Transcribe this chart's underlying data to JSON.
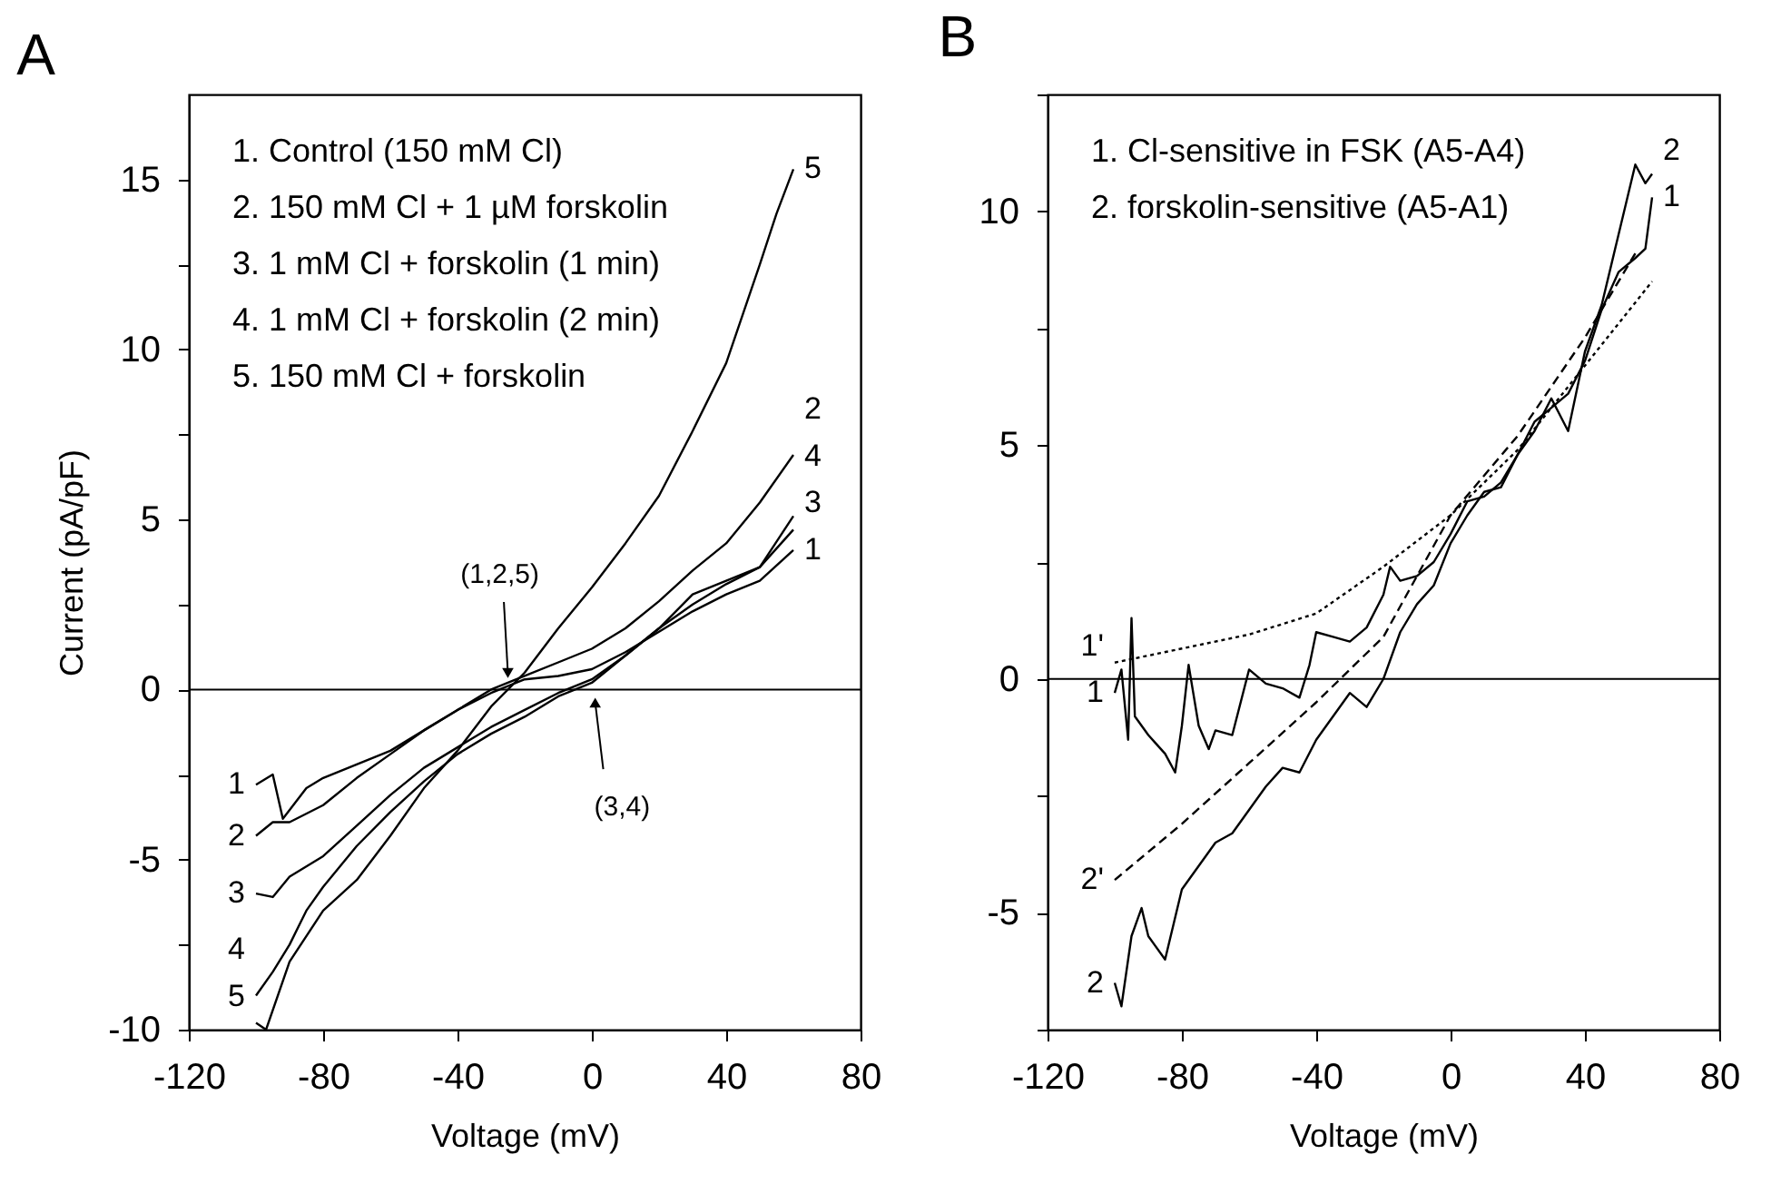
{
  "chart_data": [
    {
      "type": "line",
      "title": "A",
      "xlabel": "Voltage (mV)",
      "ylabel": "Current (pA/pF)",
      "xlim": [
        -120,
        80
      ],
      "xticks": [
        -120,
        -80,
        -40,
        0,
        40,
        80
      ],
      "ylim": [
        -10,
        17.5
      ],
      "yticks": [
        -10,
        {
          "value": -7.5,
          "label": null
        },
        -5,
        {
          "value": -2.5,
          "label": null
        },
        0,
        {
          "value": 2.5,
          "label": null
        },
        5,
        {
          "value": 7.5,
          "label": null
        },
        10,
        {
          "value": 12.5,
          "label": null
        },
        15
      ],
      "ref_lines": [
        {
          "axis": "y",
          "value": 0
        }
      ],
      "annotations": [
        "1. Control (150 mM Cl)",
        "2. 150 mM Cl + 1 µM forskolin",
        "3. 1 mM Cl + forskolin (1 min)",
        "4. 1 mM Cl + forskolin (2 min)",
        "5. 150 mM Cl + forskolin",
        {
          "text": "(1,2,5)",
          "x": -25,
          "y": 0.1
        },
        {
          "text": "(3,4)",
          "x": 1,
          "y": 0
        }
      ],
      "series": [
        {
          "name": "1",
          "color": "#000000",
          "line_style": "solid",
          "x": [
            -100,
            -95,
            -92,
            -85,
            -80,
            -70,
            -60,
            -50,
            -40,
            -30,
            -25,
            -20,
            -10,
            0,
            10,
            20,
            30,
            40,
            50,
            60
          ],
          "values": [
            -2.8,
            -2.5,
            -3.8,
            -2.9,
            -2.6,
            -2.2,
            -1.8,
            -1.2,
            -0.6,
            -0.1,
            0.1,
            0.3,
            0.4,
            0.6,
            1.1,
            1.7,
            2.3,
            2.8,
            3.2,
            4.1
          ]
        },
        {
          "name": "2",
          "color": "#000000",
          "line_style": "solid",
          "x": [
            -100,
            -95,
            -90,
            -80,
            -70,
            -60,
            -50,
            -40,
            -30,
            -20,
            -10,
            0,
            10,
            20,
            30,
            40,
            50,
            60
          ],
          "values": [
            -4.3,
            -3.9,
            -3.9,
            -3.4,
            -2.6,
            -1.9,
            -1.2,
            -0.6,
            0.0,
            0.4,
            0.8,
            1.2,
            1.8,
            2.6,
            3.5,
            4.3,
            5.5,
            6.9
          ]
        },
        {
          "name": "3",
          "color": "#000000",
          "line_style": "solid",
          "x": [
            -100,
            -95,
            -90,
            -80,
            -70,
            -60,
            -50,
            -40,
            -30,
            -20,
            -10,
            0,
            10,
            20,
            30,
            40,
            50,
            60
          ],
          "values": [
            -6.0,
            -6.1,
            -5.5,
            -4.9,
            -4.0,
            -3.1,
            -2.3,
            -1.7,
            -1.1,
            -0.6,
            -0.1,
            0.3,
            1.0,
            1.8,
            2.5,
            3.1,
            3.6,
            4.7
          ]
        },
        {
          "name": "4",
          "color": "#000000",
          "line_style": "solid",
          "x": [
            -100,
            -95,
            -90,
            -85,
            -80,
            -70,
            -60,
            -50,
            -40,
            -30,
            -20,
            -10,
            0,
            10,
            20,
            30,
            40,
            50,
            60
          ],
          "values": [
            -9.0,
            -8.3,
            -7.5,
            -6.5,
            -5.8,
            -4.6,
            -3.6,
            -2.7,
            -1.9,
            -1.3,
            -0.8,
            -0.2,
            0.2,
            1.0,
            1.8,
            2.8,
            3.2,
            3.6,
            5.1
          ]
        },
        {
          "name": "5",
          "color": "#000000",
          "line_style": "solid",
          "x": [
            -100,
            -97,
            -90,
            -80,
            -70,
            -60,
            -50,
            -40,
            -30,
            -20,
            -10,
            0,
            10,
            20,
            30,
            40,
            50,
            55,
            60
          ],
          "values": [
            -9.8,
            -10.0,
            -8.0,
            -6.5,
            -5.6,
            -4.3,
            -2.9,
            -1.8,
            -0.5,
            0.5,
            1.8,
            3.0,
            4.3,
            5.7,
            7.6,
            9.6,
            12.5,
            14.0,
            15.3
          ]
        }
      ]
    },
    {
      "type": "line",
      "title": "B",
      "xlabel": "Voltage (mV)",
      "xlim": [
        -120,
        80
      ],
      "xticks": [
        -120,
        -80,
        -40,
        0,
        40,
        80
      ],
      "ylim": [
        -7.5,
        12.5
      ],
      "yticks": [
        {
          "value": -7.5,
          "label": null
        },
        -5,
        {
          "value": -2.5,
          "label": null
        },
        0,
        {
          "value": 2.5,
          "label": null
        },
        5,
        {
          "value": 7.5,
          "label": null
        },
        10,
        {
          "value": 12.5,
          "label": null
        }
      ],
      "ref_lines": [
        {
          "axis": "y",
          "value": 0
        }
      ],
      "annotations": [
        "1. Cl-sensitive in FSK (A5-A4)",
        "2. forskolin-sensitive (A5-A1)"
      ],
      "series": [
        {
          "name": "1",
          "color": "#000000",
          "line_style": "solid",
          "x": [
            -100,
            -98,
            -96,
            -95,
            -94,
            -90,
            -85,
            -82,
            -80,
            -78,
            -75,
            -72,
            -70,
            -65,
            -60,
            -55,
            -50,
            -45,
            -42,
            -40,
            -35,
            -30,
            -25,
            -20,
            -18,
            -15,
            -10,
            -5,
            0,
            5,
            10,
            15,
            20,
            25,
            30,
            35,
            40,
            45,
            50,
            55,
            58,
            60
          ],
          "values": [
            -0.3,
            0.2,
            -1.3,
            1.3,
            -0.8,
            -1.2,
            -1.6,
            -2.0,
            -1.0,
            0.3,
            -1.0,
            -1.5,
            -1.1,
            -1.2,
            0.2,
            -0.1,
            -0.2,
            -0.4,
            0.3,
            1.0,
            0.9,
            0.8,
            1.1,
            1.8,
            2.4,
            2.1,
            2.2,
            2.5,
            3.1,
            3.8,
            3.9,
            4.2,
            4.8,
            5.5,
            5.8,
            6.1,
            6.8,
            7.9,
            8.7,
            9.0,
            9.2,
            10.3
          ]
        },
        {
          "name": "2",
          "color": "#000000",
          "line_style": "solid",
          "x": [
            -100,
            -98,
            -95,
            -92,
            -90,
            -85,
            -80,
            -75,
            -70,
            -65,
            -60,
            -55,
            -50,
            -45,
            -40,
            -35,
            -30,
            -25,
            -20,
            -15,
            -10,
            -5,
            0,
            5,
            10,
            15,
            20,
            25,
            30,
            35,
            40,
            45,
            50,
            55,
            58,
            60
          ],
          "values": [
            -6.5,
            -7.0,
            -5.5,
            -4.9,
            -5.5,
            -6.0,
            -4.5,
            -4.0,
            -3.5,
            -3.3,
            -2.8,
            -2.3,
            -1.9,
            -2.0,
            -1.3,
            -0.8,
            -0.3,
            -0.6,
            0.0,
            1.0,
            1.6,
            2.0,
            2.9,
            3.5,
            4.0,
            4.1,
            4.8,
            5.3,
            6.0,
            5.3,
            7.0,
            8.0,
            9.5,
            11.0,
            10.6,
            10.8
          ]
        },
        {
          "name": "1'",
          "color": "#000000",
          "line_style": "dotted",
          "x": [
            -100,
            -80,
            -60,
            -40,
            -20,
            0,
            20,
            40,
            60
          ],
          "values": [
            0.35,
            0.65,
            0.95,
            1.4,
            2.4,
            3.5,
            4.9,
            6.7,
            8.5
          ]
        },
        {
          "name": "2'",
          "color": "#000000",
          "line_style": "dashed",
          "x": [
            -100,
            -80,
            -60,
            -40,
            -20,
            0,
            20,
            40,
            55
          ],
          "values": [
            -4.3,
            -3.1,
            -1.8,
            -0.5,
            0.9,
            3.5,
            5.2,
            7.3,
            9.1
          ]
        }
      ]
    }
  ]
}
